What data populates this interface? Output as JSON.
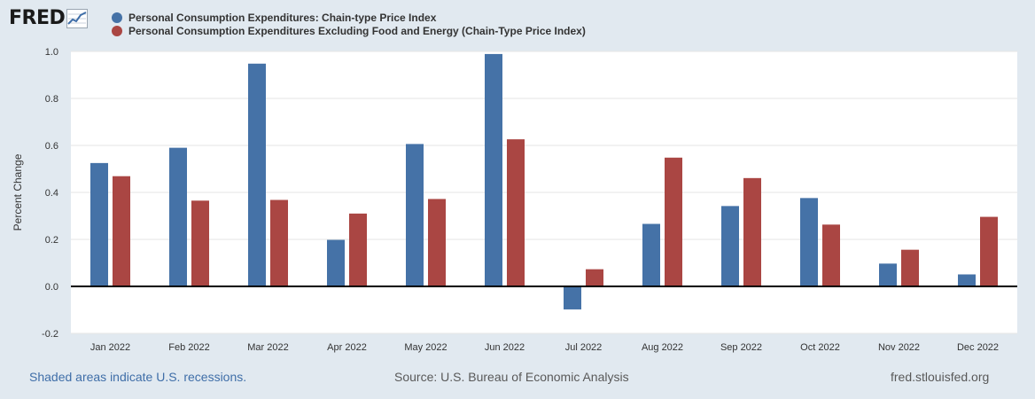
{
  "logo": {
    "text": "FRED"
  },
  "legend": [
    {
      "label": "Personal Consumption Expenditures: Chain-type Price Index",
      "color": "#4572a7"
    },
    {
      "label": "Personal Consumption Expenditures Excluding Food and Energy (Chain-Type Price Index)",
      "color": "#aa4643"
    }
  ],
  "footer": {
    "recession_note": "Shaded areas indicate U.S. recessions.",
    "source": "Source: U.S. Bureau of Economic Analysis",
    "site": "fred.stlouisfed.org"
  },
  "chart_data": {
    "type": "bar",
    "title": "",
    "xlabel": "",
    "ylabel": "Percent Change",
    "ylim": [
      -0.2,
      1.0
    ],
    "yticks": [
      "1.0",
      "0.8",
      "0.6",
      "0.4",
      "0.2",
      "0.0",
      "-0.2"
    ],
    "ytick_values": [
      1.0,
      0.8,
      0.6,
      0.4,
      0.2,
      0.0,
      -0.2
    ],
    "grid": true,
    "legend_position": "top-left",
    "categories": [
      "Jan 2022",
      "Feb 2022",
      "Mar 2022",
      "Apr 2022",
      "May 2022",
      "Jun 2022",
      "Jul 2022",
      "Aug 2022",
      "Sep 2022",
      "Oct 2022",
      "Nov 2022",
      "Dec 2022"
    ],
    "series": [
      {
        "name": "Personal Consumption Expenditures: Chain-type Price Index",
        "color": "#4572a7",
        "values": [
          0.525,
          0.59,
          0.948,
          0.198,
          0.606,
          0.989,
          -0.098,
          0.266,
          0.342,
          0.376,
          0.097,
          0.051
        ]
      },
      {
        "name": "Personal Consumption Expenditures Excluding Food and Energy (Chain-Type Price Index)",
        "color": "#aa4643",
        "values": [
          0.469,
          0.365,
          0.368,
          0.31,
          0.372,
          0.626,
          0.073,
          0.548,
          0.461,
          0.263,
          0.156,
          0.296
        ]
      }
    ]
  }
}
